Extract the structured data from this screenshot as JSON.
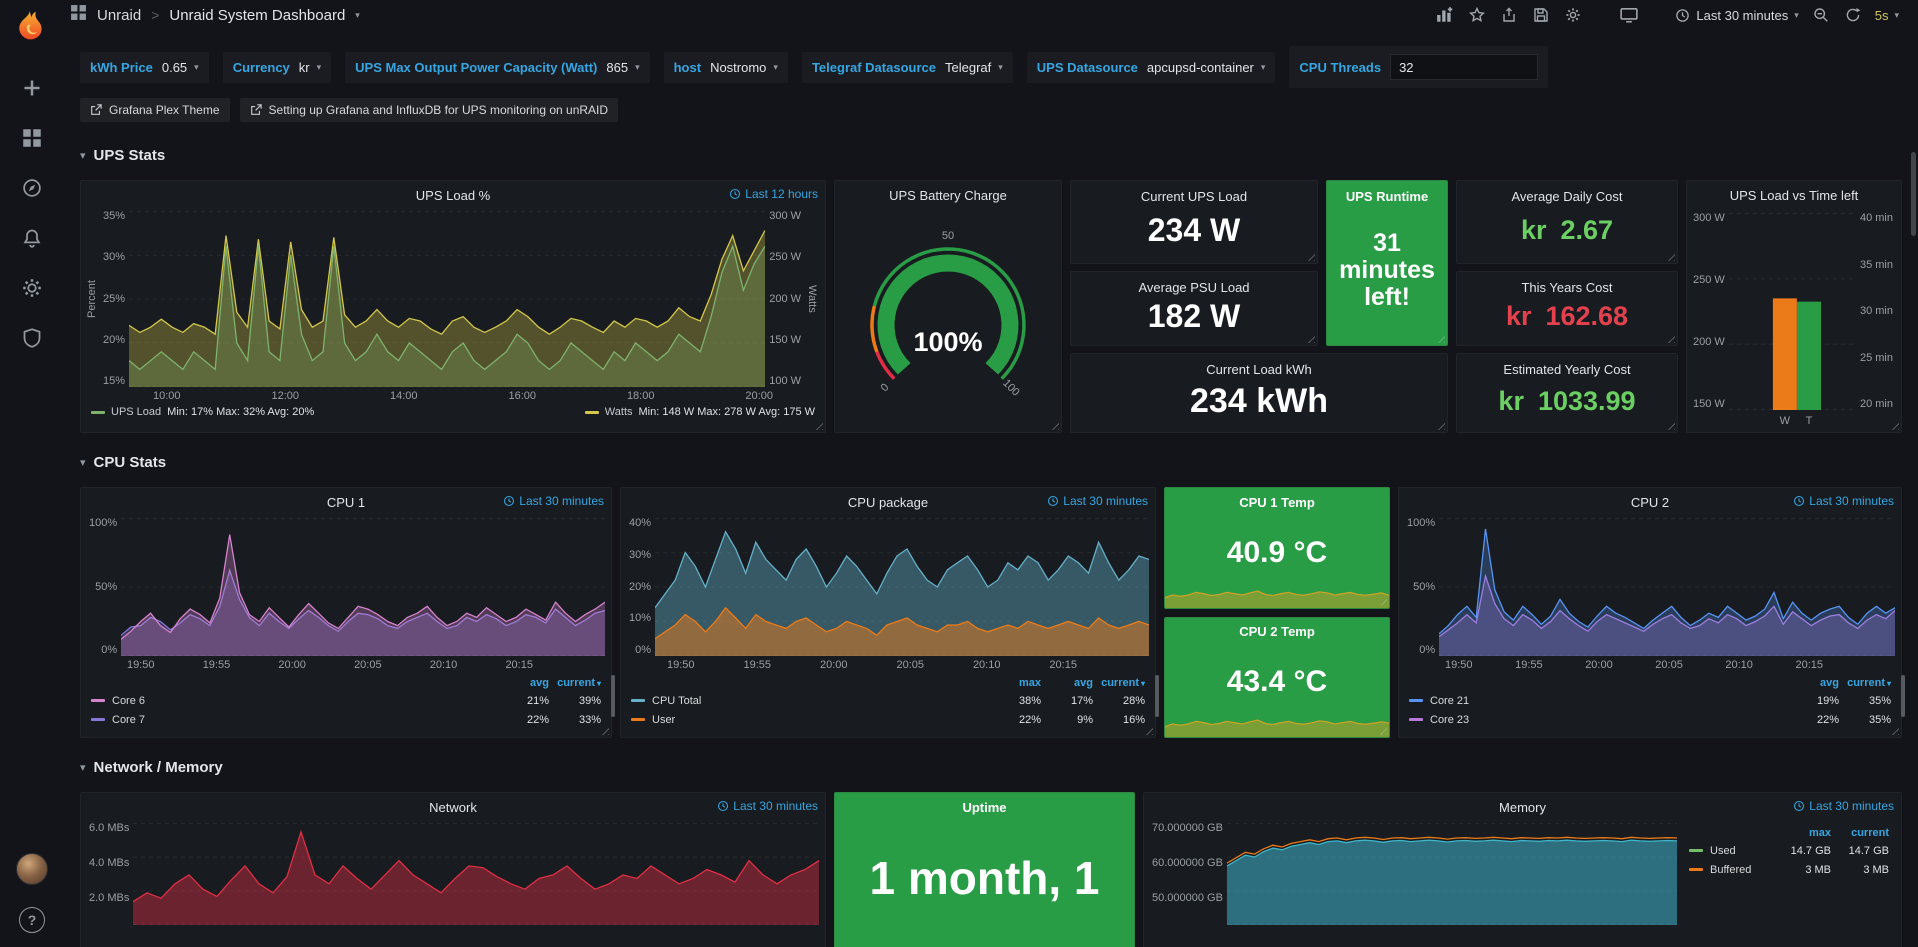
{
  "topbar": {
    "breadcrumb_folder": "Unraid",
    "breadcrumb_sep": ">",
    "breadcrumb_title": "Unraid System Dashboard",
    "time_range": "Last 30 minutes",
    "refresh_interval": "5s"
  },
  "variables": [
    {
      "label": "kWh Price",
      "value": "0.65"
    },
    {
      "label": "Currency",
      "value": "kr"
    },
    {
      "label": "UPS Max Output Power Capacity (Watt)",
      "value": "865"
    },
    {
      "label": "host",
      "value": "Nostromo"
    },
    {
      "label": "Telegraf Datasource",
      "value": "Telegraf"
    },
    {
      "label": "UPS Datasource",
      "value": "apcupsd-container"
    },
    {
      "label": "CPU Threads",
      "value": "32"
    }
  ],
  "links": [
    {
      "text": "Grafana Plex Theme"
    },
    {
      "text": "Setting up Grafana and InfluxDB for UPS monitoring on unRAID"
    }
  ],
  "rows": {
    "ups": {
      "title": "UPS Stats"
    },
    "cpu": {
      "title": "CPU Stats"
    },
    "net": {
      "title": "Network / Memory"
    }
  },
  "panels": {
    "ups_load": {
      "title": "UPS Load %",
      "time": "Last 12 hours",
      "y_left_name": "Percent",
      "y_right_name": "Watts",
      "legend": [
        {
          "name": "UPS Load",
          "stats": "Min: 17% Max: 32% Avg: 20%"
        },
        {
          "name": "Watts",
          "stats": "Min: 148 W Max: 278 W Avg: 175 W"
        }
      ]
    },
    "battery": {
      "title": "UPS Battery Charge",
      "value": "100%"
    },
    "cur_load": {
      "title": "Current UPS Load",
      "value": "234 W"
    },
    "avg_load": {
      "title": "Average PSU Load",
      "value": "182 W"
    },
    "runtime": {
      "title": "UPS Runtime",
      "value": "31 minutes left!"
    },
    "kwh": {
      "title": "Current Load kWh",
      "value": "234 kWh"
    },
    "daily": {
      "title": "Average Daily Cost",
      "currency": "kr",
      "amount": "2.67",
      "color": "#6ccf63"
    },
    "years": {
      "title": "This Years Cost",
      "currency": "kr",
      "amount": "162.68",
      "color": "#e3414e"
    },
    "est": {
      "title": "Estimated Yearly Cost",
      "currency": "kr",
      "amount": "1033.99",
      "color": "#6ccf63"
    },
    "ups_vs": {
      "title": "UPS Load vs Time left"
    },
    "cpu1": {
      "title": "CPU 1",
      "time": "Last 30 minutes",
      "headers": [
        "avg",
        "current"
      ],
      "rows": [
        [
          "Core 6",
          "21%",
          "39%"
        ],
        [
          "Core 7",
          "22%",
          "33%"
        ]
      ]
    },
    "cpu_pkg": {
      "title": "CPU package",
      "time": "Last 30 minutes",
      "headers": [
        "max",
        "avg",
        "current"
      ],
      "rows": [
        [
          "CPU Total",
          "38%",
          "17%",
          "28%"
        ],
        [
          "User",
          "22%",
          "9%",
          "16%"
        ]
      ]
    },
    "temp1": {
      "title": "CPU 1 Temp",
      "value": "40.9 °C"
    },
    "temp2": {
      "title": "CPU 2 Temp",
      "value": "43.4 °C"
    },
    "cpu2": {
      "title": "CPU 2",
      "time": "Last 30 minutes",
      "headers": [
        "avg",
        "current"
      ],
      "rows": [
        [
          "Core 21",
          "19%",
          "35%"
        ],
        [
          "Core 23",
          "22%",
          "35%"
        ]
      ]
    },
    "network": {
      "title": "Network",
      "time": "Last 30 minutes"
    },
    "uptime": {
      "title": "Uptime",
      "value": "1 month, 1"
    },
    "memory": {
      "title": "Memory",
      "time": "Last 30 minutes",
      "headers": [
        "max",
        "current"
      ],
      "rows": [
        [
          "Used",
          "14.7 GB",
          "14.7 GB"
        ],
        [
          "Buffered",
          "3 MB",
          "3 MB"
        ]
      ],
      "legend_colors": [
        "#73bf69",
        "#eb7b18"
      ]
    }
  },
  "chart_data": {
    "ups_load": {
      "type": "line",
      "grid": 4,
      "left_ticks": [
        "35%",
        "30%",
        "25%",
        "20%",
        "15%"
      ],
      "right_ticks": [
        "300 W",
        "250 W",
        "200 W",
        "150 W",
        "100 W"
      ],
      "x_ticks": [
        "10:00",
        "12:00",
        "14:00",
        "16:00",
        "18:00",
        "20:00"
      ],
      "series": [
        {
          "name": "Watts",
          "color": "#d2c74a",
          "fill": 0.32,
          "min": 100,
          "max": 300,
          "data": [
            170,
            162,
            168,
            177,
            168,
            162,
            172,
            168,
            160,
            272,
            185,
            168,
            268,
            175,
            166,
            265,
            188,
            168,
            175,
            270,
            182,
            168,
            175,
            188,
            175,
            168,
            178,
            175,
            166,
            160,
            175,
            180,
            168,
            162,
            168,
            175,
            188,
            180,
            168,
            160,
            168,
            178,
            175,
            168,
            162,
            175,
            168,
            178,
            175,
            168,
            175,
            190,
            180,
            175,
            205,
            245,
            272,
            232,
            255,
            278
          ]
        },
        {
          "name": "UPS Load",
          "color": "#7eb26d",
          "fill": 0.25,
          "min": 15,
          "max": 35,
          "data": [
            18,
            17,
            18,
            19,
            18,
            17,
            19,
            18,
            17,
            31,
            20,
            18,
            31,
            19,
            18,
            30,
            21,
            18,
            19,
            31,
            20,
            18,
            19,
            21,
            19,
            18,
            20,
            19,
            18,
            17,
            19,
            20,
            18,
            17,
            18,
            19,
            21,
            20,
            18,
            17,
            18,
            20,
            19,
            18,
            17,
            19,
            18,
            20,
            19,
            18,
            19,
            21,
            20,
            19,
            23,
            28,
            31,
            26,
            29,
            31
          ]
        }
      ]
    },
    "battery": {
      "type": "gauge",
      "value": 1,
      "ticks": [
        "0",
        "50",
        "100"
      ],
      "value_color": "#299c46",
      "thresholds": [
        {
          "to": 0.09,
          "color": "#e02f44"
        },
        {
          "to": 0.22,
          "color": "#eb7b18"
        },
        {
          "to": 1,
          "color": "#299c46"
        }
      ]
    },
    "ups_vs": {
      "type": "bars",
      "grid": 3,
      "left_ticks": [
        "300 W",
        "250 W",
        "200 W",
        "150 W"
      ],
      "right_ticks": [
        "40 min",
        "35 min",
        "30 min",
        "25 min",
        "20 min"
      ],
      "series": [
        {
          "label": "W",
          "value": 235,
          "min": 150,
          "max": 300,
          "color": "#eb7b18"
        },
        {
          "label": "T",
          "value": 31,
          "min": 20,
          "max": 40,
          "color": "#299c46"
        }
      ]
    },
    "cpu1": {
      "type": "line",
      "grid": 2,
      "left_ticks": [
        "100%",
        "50%",
        "0%"
      ],
      "x_ticks": [
        "19:50",
        "19:55",
        "20:00",
        "20:05",
        "20:10",
        "20:15"
      ],
      "series": [
        {
          "name": "Core 7",
          "color": "#8877d9",
          "fill": 0.3,
          "min": 0,
          "max": 100,
          "data": [
            15,
            21,
            22,
            28,
            25,
            19,
            24,
            30,
            27,
            22,
            36,
            62,
            41,
            28,
            22,
            31,
            25,
            20,
            27,
            33,
            28,
            22,
            18,
            25,
            31,
            30,
            27,
            22,
            20,
            25,
            28,
            31,
            25,
            20,
            22,
            28,
            25,
            30,
            27,
            22,
            25,
            30,
            28,
            24,
            34,
            28,
            22,
            26,
            31,
            33
          ]
        },
        {
          "name": "Core 6",
          "color": "#d683ce",
          "fill": 0.3,
          "min": 0,
          "max": 100,
          "data": [
            12,
            18,
            25,
            31,
            22,
            17,
            27,
            34,
            30,
            24,
            42,
            88,
            46,
            30,
            25,
            35,
            28,
            21,
            30,
            38,
            31,
            24,
            20,
            28,
            36,
            34,
            30,
            25,
            22,
            28,
            31,
            36,
            28,
            22,
            25,
            31,
            28,
            35,
            30,
            25,
            28,
            34,
            30,
            26,
            39,
            31,
            25,
            30,
            34,
            39
          ]
        }
      ]
    },
    "cpu_pkg": {
      "type": "line",
      "grid": 4,
      "left_ticks": [
        "40%",
        "30%",
        "20%",
        "10%",
        "0%"
      ],
      "x_ticks": [
        "19:50",
        "19:55",
        "20:00",
        "20:05",
        "20:10",
        "20:15"
      ],
      "series": [
        {
          "name": "CPU Total",
          "color": "#64b0c8",
          "fill": 0.42,
          "min": 0,
          "max": 40,
          "data": [
            14,
            18,
            22,
            30,
            26,
            20,
            28,
            36,
            31,
            24,
            33,
            28,
            25,
            22,
            28,
            31,
            26,
            20,
            24,
            29,
            26,
            22,
            18,
            24,
            29,
            31,
            26,
            22,
            20,
            25,
            27,
            29,
            25,
            20,
            22,
            27,
            25,
            29,
            27,
            22,
            25,
            29,
            27,
            24,
            33,
            27,
            22,
            25,
            29,
            28
          ]
        },
        {
          "name": "User",
          "color": "#eb7b18",
          "fill": 0.5,
          "min": 0,
          "max": 40,
          "data": [
            5,
            7,
            9,
            12,
            10,
            7,
            10,
            14,
            11,
            8,
            12,
            10,
            9,
            8,
            10,
            11,
            9,
            7,
            8,
            10,
            9,
            8,
            6,
            9,
            10,
            11,
            9,
            8,
            7,
            9,
            9,
            10,
            8,
            7,
            8,
            9,
            8,
            10,
            9,
            8,
            9,
            10,
            9,
            8,
            11,
            9,
            8,
            9,
            10,
            9
          ]
        }
      ]
    },
    "cpu2": {
      "type": "line",
      "grid": 2,
      "left_ticks": [
        "100%",
        "50%",
        "0%"
      ],
      "x_ticks": [
        "19:50",
        "19:55",
        "20:00",
        "20:05",
        "20:10",
        "20:15"
      ],
      "series": [
        {
          "name": "Core 23",
          "color": "#b877d9",
          "fill": 0.3,
          "min": 0,
          "max": 100,
          "data": [
            14,
            19,
            24,
            30,
            24,
            58,
            38,
            27,
            22,
            30,
            26,
            20,
            25,
            33,
            27,
            22,
            18,
            25,
            30,
            27,
            24,
            21,
            18,
            23,
            27,
            30,
            24,
            20,
            22,
            27,
            24,
            30,
            27,
            22,
            25,
            29,
            36,
            23,
            32,
            27,
            22,
            26,
            29,
            30,
            24,
            20,
            26,
            30,
            27,
            33
          ]
        },
        {
          "name": "Core 21",
          "color": "#5794f2",
          "fill": 0.28,
          "min": 0,
          "max": 100,
          "data": [
            16,
            22,
            30,
            36,
            28,
            92,
            48,
            32,
            26,
            36,
            30,
            23,
            29,
            41,
            31,
            25,
            21,
            29,
            36,
            31,
            28,
            24,
            20,
            26,
            31,
            36,
            28,
            22,
            26,
            31,
            28,
            36,
            31,
            26,
            29,
            34,
            46,
            27,
            39,
            31,
            26,
            31,
            34,
            36,
            28,
            23,
            31,
            36,
            31,
            35
          ]
        }
      ]
    },
    "temp1_spark": {
      "type": "line",
      "series": [
        {
          "name": "CPU 1 Temp",
          "color": "#caa226",
          "fill": 0.5,
          "min": 36,
          "max": 46,
          "data": [
            40,
            41,
            40.5,
            41,
            42,
            41.5,
            40.8,
            41.2,
            42,
            41.5,
            41,
            41.8,
            42.5,
            41.2,
            40.8,
            41.5,
            42,
            41.2,
            40.9,
            41.5,
            42.2,
            41.8,
            41,
            41.5,
            42,
            41.2,
            40.9,
            41.3,
            41.8,
            40.9
          ]
        }
      ]
    },
    "temp2_spark": {
      "type": "line",
      "series": [
        {
          "name": "CPU 2 Temp",
          "color": "#caa226",
          "fill": 0.5,
          "min": 38,
          "max": 48,
          "data": [
            42,
            43,
            42.5,
            43,
            44,
            43.5,
            42.8,
            43.2,
            44,
            43.5,
            43,
            43.8,
            44.5,
            43.2,
            42.8,
            43.5,
            44,
            43.2,
            42.9,
            43.5,
            44.2,
            43.8,
            43,
            43.5,
            44,
            43.2,
            42.9,
            43.3,
            43.8,
            43.4
          ]
        }
      ]
    },
    "network": {
      "type": "line",
      "grid": 3,
      "left_ticks": [
        "6.0 MBs",
        "4.0 MBs",
        "2.0 MBs"
      ],
      "series": [
        {
          "name": "Network",
          "color": "#e02f44",
          "fill": 0.42,
          "min": 0.3,
          "max": 6,
          "data": [
            1.6,
            2.1,
            1.8,
            2.6,
            3.1,
            2.3,
            1.9,
            2.8,
            3.6,
            2.6,
            2.1,
            3.0,
            5.5,
            3.1,
            2.6,
            3.6,
            2.9,
            2.3,
            3.1,
            3.9,
            3.1,
            2.6,
            2.1,
            2.9,
            3.6,
            3.5,
            3.0,
            2.6,
            2.3,
            2.9,
            3.1,
            3.6,
            2.9,
            2.3,
            2.6,
            3.1,
            2.9,
            3.6,
            3.1,
            2.6,
            2.9,
            3.4,
            3.1,
            2.7,
            3.9,
            3.1,
            2.6,
            3.1,
            3.4,
            3.9
          ]
        }
      ]
    },
    "memory": {
      "type": "line",
      "grid": 3,
      "left_ticks": [
        "70.000000 GB",
        "60.000000 GB",
        "50.000000 GB"
      ],
      "series": [
        {
          "name": "Used",
          "color": "#3fb5cc",
          "fill": 0.55,
          "min": 41.5,
          "max": 70,
          "data": [
            58,
            59.5,
            61,
            60.5,
            62,
            63,
            62.5,
            63.5,
            64,
            64.5,
            64,
            64.8,
            65,
            64.5,
            65,
            65.2,
            65,
            64.6,
            65,
            65.1,
            64.8,
            65,
            65.2,
            65,
            64.7,
            65,
            65.1,
            64.9,
            65,
            65.2,
            65,
            64.8,
            65.1,
            65,
            64.9,
            65.1,
            65,
            65.2,
            65,
            64.9,
            65,
            65.1,
            65,
            64.8,
            65.2,
            65,
            64.9,
            65,
            65.1,
            65
          ]
        },
        {
          "name": "Buffered",
          "color": "#eb7b18",
          "fill": 0,
          "min": 41.5,
          "max": 70,
          "data": [
            58.8,
            60.3,
            61.8,
            61.3,
            62.8,
            63.8,
            63.3,
            64.3,
            64.8,
            65.3,
            64.8,
            65.6,
            65.8,
            65.3,
            65.8,
            66,
            65.8,
            65.4,
            65.8,
            65.9,
            65.6,
            65.8,
            66,
            65.8,
            65.5,
            65.8,
            65.9,
            65.7,
            65.8,
            66,
            65.8,
            65.6,
            65.9,
            65.8,
            65.7,
            65.9,
            65.8,
            66,
            65.8,
            65.7,
            65.8,
            65.9,
            65.8,
            65.6,
            66,
            65.8,
            65.7,
            65.8,
            65.9,
            65.8
          ]
        }
      ]
    }
  }
}
